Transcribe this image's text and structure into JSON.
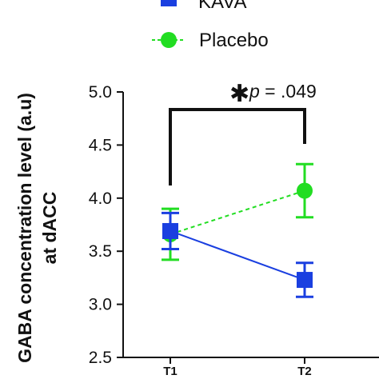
{
  "chart_data": {
    "type": "line",
    "categories": [
      "T1",
      "T2"
    ],
    "series": [
      {
        "name": "KAVA",
        "values": [
          3.69,
          3.23
        ],
        "error": [
          0.17,
          0.16
        ],
        "color": "#1a3fe0",
        "line_style": "solid",
        "marker": "square"
      },
      {
        "name": "Placebo",
        "values": [
          3.66,
          4.07
        ],
        "error": [
          0.24,
          0.25
        ],
        "color": "#22dd22",
        "line_style": "dashed",
        "marker": "circle"
      }
    ],
    "ylabel_line1": "GABA concentration level (a.u)",
    "ylabel_line2": "at dACC",
    "ylim": [
      2.5,
      5.0
    ],
    "yticks": [
      "2.5",
      "3.0",
      "3.5",
      "4.0",
      "4.5",
      "5.0"
    ],
    "annotation": {
      "star": "✱",
      "label_p": "p",
      "label_rest": " = .049"
    },
    "legend_position": "top-left",
    "grid": false
  }
}
